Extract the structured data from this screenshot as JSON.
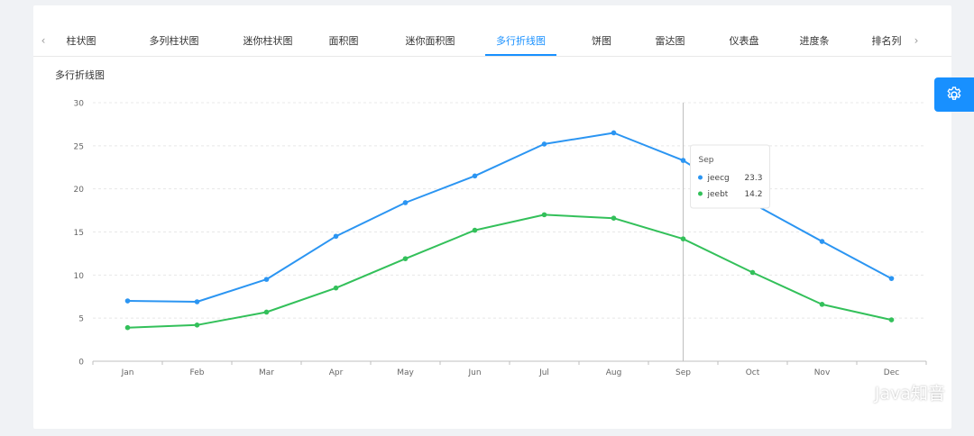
{
  "tabs": {
    "items": [
      {
        "label": "柱状图"
      },
      {
        "label": "多列柱状图"
      },
      {
        "label": "迷你柱状图"
      },
      {
        "label": "面积图"
      },
      {
        "label": "迷你面积图"
      },
      {
        "label": "多行折线图"
      },
      {
        "label": "饼图"
      },
      {
        "label": "雷达图"
      },
      {
        "label": "仪表盘"
      },
      {
        "label": "进度条"
      },
      {
        "label": "排名列"
      }
    ],
    "active_index": 5,
    "prev_icon": "chevron-left-icon",
    "next_icon": "chevron-right-icon"
  },
  "chart_title": "多行折线图",
  "chart_data": {
    "type": "line",
    "title": "多行折线图",
    "categories": [
      "Jan",
      "Feb",
      "Mar",
      "Apr",
      "May",
      "Jun",
      "Jul",
      "Aug",
      "Sep",
      "Oct",
      "Nov",
      "Dec"
    ],
    "series": [
      {
        "name": "jeecg",
        "color": "#2b95f2",
        "values": [
          7.0,
          6.9,
          9.5,
          14.5,
          18.4,
          21.5,
          25.2,
          26.5,
          23.3,
          18.3,
          13.9,
          9.6
        ]
      },
      {
        "name": "jeebt",
        "color": "#33c05a",
        "values": [
          3.9,
          4.2,
          5.7,
          8.5,
          11.9,
          15.2,
          17.0,
          16.6,
          14.2,
          10.3,
          6.6,
          4.8
        ]
      }
    ],
    "ylim": [
      0,
      30
    ],
    "yticks": [
      0,
      5,
      10,
      15,
      20,
      25,
      30
    ],
    "grid": true,
    "tooltip": {
      "category": "Sep",
      "rows": [
        {
          "name": "jeecg",
          "value": "23.3"
        },
        {
          "name": "jeebt",
          "value": "14.2"
        }
      ]
    }
  },
  "settings": {
    "icon": "gear-icon"
  },
  "watermark": {
    "text": "Java知音",
    "icon": "wechat-icon"
  }
}
